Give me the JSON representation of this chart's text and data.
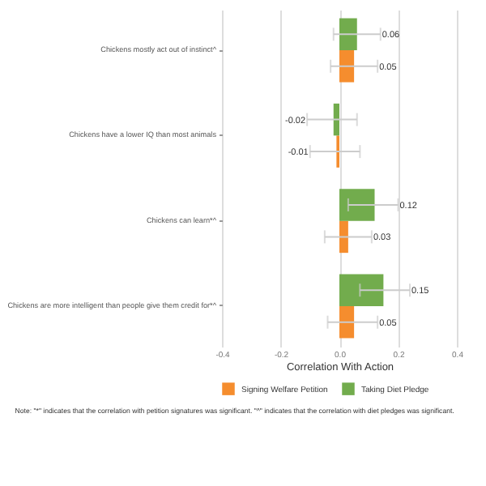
{
  "chart_data": {
    "type": "bar",
    "orientation": "horizontal",
    "xlabel": "Correlation With Action",
    "categories": [
      "Chickens mostly act out of instinct^",
      "Chickens have a lower IQ than most animals",
      "Chickens can learn*^",
      "Chickens are more intelligent than people give them credit for*^"
    ],
    "series": [
      {
        "name": "Signing Welfare Petition",
        "color": "#f58d2e",
        "values": [
          0.05,
          -0.01,
          0.03,
          0.05
        ],
        "errors": [
          [
            -0.03,
            0.13
          ],
          [
            -0.1,
            0.07
          ],
          [
            -0.05,
            0.11
          ],
          [
            -0.04,
            0.13
          ]
        ]
      },
      {
        "name": "Taking Diet Pledge",
        "color": "#72ac4d",
        "values": [
          0.06,
          -0.02,
          0.12,
          0.15
        ],
        "errors": [
          [
            -0.02,
            0.14
          ],
          [
            -0.11,
            0.06
          ],
          [
            0.03,
            0.2
          ],
          [
            0.07,
            0.24
          ]
        ]
      }
    ],
    "xlim": [
      -0.4,
      0.4
    ],
    "xticks": [
      -0.4,
      -0.2,
      {
        "value": 0,
        "label": "0.0"
      },
      0.2,
      0.4
    ],
    "grid": "x",
    "legend": "bottom",
    "data_labels": true,
    "annotations": [
      "Note: \"*\" indicates that the correlation with petition signatures was significant. \"^\" indicates that the correlation with diet pledges was significant."
    ]
  }
}
